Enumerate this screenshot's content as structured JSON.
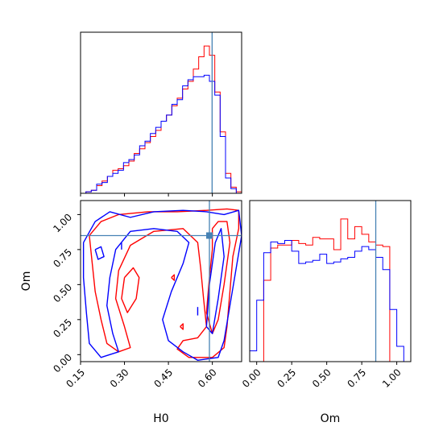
{
  "chart_data": {
    "type": "corner",
    "parameters": [
      "H0",
      "Om"
    ],
    "truth": {
      "H0": 0.59,
      "Om": 0.85
    },
    "colors": {
      "red": "#ff0000",
      "blue": "#0000ff",
      "truth": "#4682b4"
    },
    "panels": {
      "h0_hist": {
        "xlim": [
          0.1,
          0.7
        ],
        "edges": [
          0.1,
          0.12,
          0.14,
          0.16,
          0.18,
          0.2,
          0.22,
          0.24,
          0.26,
          0.28,
          0.3,
          0.32,
          0.34,
          0.36,
          0.38,
          0.4,
          0.42,
          0.44,
          0.46,
          0.48,
          0.5,
          0.52,
          0.54,
          0.56,
          0.58,
          0.6,
          0.62,
          0.64,
          0.66,
          0.68,
          0.7
        ],
        "series": [
          {
            "color": "red",
            "values": [
              0,
              0.01,
              0.02,
              0.05,
              0.08,
              0.11,
              0.15,
              0.16,
              0.18,
              0.21,
              0.26,
              0.29,
              0.33,
              0.37,
              0.41,
              0.47,
              0.51,
              0.57,
              0.62,
              0.68,
              0.73,
              0.81,
              0.89,
              0.96,
              0.9,
              0.66,
              0.4,
              0.13,
              0.04,
              0.01
            ]
          },
          {
            "color": "blue",
            "values": [
              0,
              0.01,
              0.02,
              0.06,
              0.07,
              0.11,
              0.13,
              0.15,
              0.2,
              0.22,
              0.25,
              0.31,
              0.34,
              0.39,
              0.43,
              0.47,
              0.51,
              0.58,
              0.61,
              0.7,
              0.74,
              0.76,
              0.76,
              0.77,
              0.73,
              0.64,
              0.37,
              0.1,
              0.03,
              0.0
            ]
          }
        ]
      },
      "om_hist": {
        "xlim": [
          -0.05,
          1.1
        ],
        "xticks": [
          "0.00",
          "0.25",
          "0.50",
          "0.75",
          "1.00"
        ],
        "xtick_values": [
          0,
          0.25,
          0.5,
          0.75,
          1.0
        ],
        "edges": [
          -0.05,
          0.0,
          0.05,
          0.1,
          0.15,
          0.2,
          0.25,
          0.3,
          0.35,
          0.4,
          0.45,
          0.5,
          0.55,
          0.6,
          0.65,
          0.7,
          0.75,
          0.8,
          0.85,
          0.9,
          0.95,
          1.0,
          1.05,
          1.1
        ],
        "series": [
          {
            "color": "red",
            "values": [
              0,
              0,
              0.53,
              0.74,
              0.76,
              0.76,
              0.79,
              0.77,
              0.76,
              0.81,
              0.8,
              0.8,
              0.73,
              0.93,
              0.8,
              0.88,
              0.83,
              0.78,
              0.76,
              0.75,
              0,
              0,
              0
            ]
          },
          {
            "color": "blue",
            "values": [
              0.07,
              0.4,
              0.71,
              0.78,
              0.77,
              0.79,
              0.72,
              0.64,
              0.65,
              0.66,
              0.7,
              0.64,
              0.65,
              0.67,
              0.68,
              0.72,
              0.75,
              0.73,
              0.68,
              0.6,
              0.34,
              0.1,
              0
            ]
          }
        ]
      },
      "h0_om_contour": {
        "xlim": [
          0.15,
          0.7
        ],
        "ylim": [
          -0.05,
          1.1
        ],
        "xticks": [
          "0.15",
          "0.30",
          "0.45",
          "0.60"
        ],
        "xtick_values": [
          0.15,
          0.3,
          0.45,
          0.6
        ],
        "yticks": [
          "0.00",
          "0.25",
          "0.50",
          "0.75",
          "1.00"
        ],
        "ytick_values": [
          0,
          0.25,
          0.5,
          0.75,
          1.0
        ],
        "contours": [
          {
            "color": "red",
            "points": [
              [
                0.18,
                0.85
              ],
              [
                0.22,
                0.95
              ],
              [
                0.28,
                1.0
              ],
              [
                0.38,
                1.02
              ],
              [
                0.48,
                1.02
              ],
              [
                0.58,
                1.03
              ],
              [
                0.65,
                1.04
              ],
              [
                0.69,
                1.03
              ],
              [
                0.69,
                0.9
              ],
              [
                0.67,
                0.7
              ],
              [
                0.66,
                0.45
              ],
              [
                0.65,
                0.2
              ],
              [
                0.64,
                0.05
              ],
              [
                0.6,
                -0.02
              ],
              [
                0.52,
                -0.02
              ],
              [
                0.48,
                0.04
              ],
              [
                0.5,
                0.1
              ],
              [
                0.55,
                0.12
              ],
              [
                0.58,
                0.2
              ],
              [
                0.57,
                0.4
              ],
              [
                0.56,
                0.62
              ],
              [
                0.55,
                0.8
              ],
              [
                0.5,
                0.9
              ],
              [
                0.4,
                0.88
              ],
              [
                0.32,
                0.78
              ],
              [
                0.28,
                0.6
              ],
              [
                0.27,
                0.4
              ],
              [
                0.3,
                0.2
              ],
              [
                0.32,
                0.05
              ],
              [
                0.28,
                0.02
              ],
              [
                0.24,
                0.08
              ],
              [
                0.22,
                0.25
              ],
              [
                0.2,
                0.45
              ],
              [
                0.19,
                0.65
              ],
              [
                0.18,
                0.85
              ]
            ]
          },
          {
            "color": "red",
            "points": [
              [
                0.6,
                0.9
              ],
              [
                0.62,
                0.95
              ],
              [
                0.65,
                0.95
              ],
              [
                0.66,
                0.8
              ],
              [
                0.64,
                0.5
              ],
              [
                0.62,
                0.25
              ],
              [
                0.6,
                0.15
              ],
              [
                0.58,
                0.3
              ],
              [
                0.59,
                0.55
              ],
              [
                0.6,
                0.75
              ],
              [
                0.6,
                0.9
              ]
            ]
          },
          {
            "color": "red",
            "points": [
              [
                0.3,
                0.55
              ],
              [
                0.33,
                0.62
              ],
              [
                0.35,
                0.55
              ],
              [
                0.34,
                0.4
              ],
              [
                0.31,
                0.3
              ],
              [
                0.29,
                0.4
              ],
              [
                0.3,
                0.55
              ]
            ]
          },
          {
            "color": "red",
            "points": [
              [
                0.46,
                0.55
              ],
              [
                0.47,
                0.57
              ],
              [
                0.47,
                0.53
              ],
              [
                0.46,
                0.55
              ]
            ]
          },
          {
            "color": "red",
            "points": [
              [
                0.49,
                0.2
              ],
              [
                0.5,
                0.22
              ],
              [
                0.5,
                0.18
              ],
              [
                0.49,
                0.2
              ]
            ]
          },
          {
            "color": "blue",
            "points": [
              [
                0.16,
                0.8
              ],
              [
                0.2,
                0.95
              ],
              [
                0.25,
                1.02
              ],
              [
                0.32,
                0.98
              ],
              [
                0.4,
                1.02
              ],
              [
                0.5,
                1.03
              ],
              [
                0.58,
                1.02
              ],
              [
                0.64,
                1.0
              ],
              [
                0.69,
                1.03
              ],
              [
                0.7,
                0.85
              ],
              [
                0.68,
                0.6
              ],
              [
                0.66,
                0.35
              ],
              [
                0.64,
                0.1
              ],
              [
                0.62,
                -0.02
              ],
              [
                0.55,
                -0.04
              ],
              [
                0.5,
                0.02
              ],
              [
                0.45,
                0.1
              ],
              [
                0.43,
                0.25
              ],
              [
                0.46,
                0.45
              ],
              [
                0.5,
                0.65
              ],
              [
                0.52,
                0.8
              ],
              [
                0.48,
                0.88
              ],
              [
                0.4,
                0.9
              ],
              [
                0.32,
                0.88
              ],
              [
                0.27,
                0.75
              ],
              [
                0.25,
                0.55
              ],
              [
                0.24,
                0.35
              ],
              [
                0.26,
                0.15
              ],
              [
                0.28,
                0.02
              ],
              [
                0.22,
                -0.02
              ],
              [
                0.18,
                0.08
              ],
              [
                0.17,
                0.3
              ],
              [
                0.16,
                0.55
              ],
              [
                0.16,
                0.8
              ]
            ]
          },
          {
            "color": "blue",
            "points": [
              [
                0.58,
                0.2
              ],
              [
                0.59,
                0.5
              ],
              [
                0.61,
                0.8
              ],
              [
                0.63,
                0.9
              ],
              [
                0.64,
                0.7
              ],
              [
                0.62,
                0.4
              ],
              [
                0.6,
                0.15
              ],
              [
                0.58,
                0.2
              ]
            ]
          },
          {
            "color": "blue",
            "points": [
              [
                0.2,
                0.75
              ],
              [
                0.22,
                0.77
              ],
              [
                0.23,
                0.7
              ],
              [
                0.21,
                0.68
              ],
              [
                0.2,
                0.75
              ]
            ]
          },
          {
            "color": "blue",
            "points": [
              [
                0.29,
                0.75
              ],
              [
                0.29,
                0.8
              ]
            ]
          },
          {
            "color": "blue",
            "points": [
              [
                0.55,
                0.28
              ],
              [
                0.55,
                0.34
              ]
            ]
          }
        ]
      }
    },
    "xlabels": {
      "h0_om_contour": "H0",
      "om_hist": "Om"
    },
    "ylabels": {
      "h0_om_contour": "Om"
    }
  }
}
